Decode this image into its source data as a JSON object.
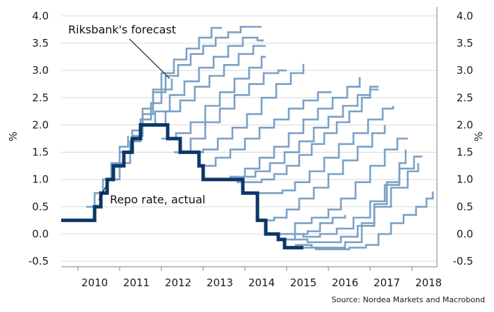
{
  "chart_data": {
    "type": "line",
    "title": "",
    "xlabel": "",
    "ylabel": "%",
    "y2label": "%",
    "xlim": [
      2009.6,
      2018.6
    ],
    "ylim": [
      -0.6,
      4.1
    ],
    "x_ticks": [
      "2010",
      "2011",
      "2012",
      "2013",
      "2014",
      "2015",
      "2016",
      "2017",
      "2018"
    ],
    "y_ticks": [
      "4.0",
      "3.5",
      "3.0",
      "2.5",
      "2.0",
      "1.5",
      "1.0",
      "0.5",
      "0.0",
      "-0.5"
    ],
    "grid": "horizontal",
    "annotations": [
      {
        "text": "Riksbank's forecast",
        "points_to": "forecast paths"
      },
      {
        "text": "Repo rate, actual",
        "points_to": "actual repo rate"
      }
    ],
    "source": "Source: Nordea Markets and Macrobond",
    "colors": {
      "actual": "#0b3768",
      "forecast": "#7ba0c6",
      "grid": "#d9d9d9",
      "axis": "#7f7f7f"
    },
    "series": [
      {
        "name": "Repo rate, actual",
        "role": "actual",
        "x": [
          2009.6,
          2010.1,
          2010.4,
          2010.55,
          2010.7,
          2010.85,
          2011.1,
          2011.3,
          2011.5,
          2011.95,
          2012.15,
          2012.45,
          2012.9,
          2013.0,
          2013.5,
          2013.95,
          2014.3,
          2014.5,
          2014.7,
          2014.8,
          2014.95,
          2015.15,
          2015.4
        ],
        "y": [
          0.25,
          0.25,
          0.5,
          0.75,
          1.0,
          1.25,
          1.5,
          1.75,
          2.0,
          2.0,
          1.75,
          1.5,
          1.25,
          1.0,
          1.0,
          0.75,
          0.25,
          0.0,
          0.0,
          -0.1,
          -0.25,
          -0.25,
          -0.25
        ]
      },
      {
        "role": "forecast",
        "x": [
          2010.2,
          2010.4,
          2010.6,
          2010.8,
          2011.0,
          2011.2
        ],
        "y": [
          0.5,
          0.75,
          1.0,
          1.3,
          1.6,
          1.8
        ]
      },
      {
        "role": "forecast",
        "x": [
          2010.7,
          2011.0,
          2011.25,
          2011.5,
          2011.75,
          2012.0,
          2012.25
        ],
        "y": [
          1.0,
          1.3,
          1.7,
          2.1,
          2.4,
          2.65,
          2.85
        ]
      },
      {
        "role": "forecast",
        "x": [
          2011.0,
          2011.3,
          2011.55,
          2011.8,
          2012.0,
          2012.3,
          2012.6,
          2012.9,
          2013.2,
          2013.45
        ],
        "y": [
          1.5,
          1.9,
          2.3,
          2.65,
          2.95,
          3.2,
          3.4,
          3.6,
          3.78,
          3.78
        ]
      },
      {
        "role": "forecast",
        "x": [
          2011.3,
          2011.55,
          2011.8,
          2012.1,
          2012.4,
          2012.7,
          2013.0,
          2013.3,
          2013.6,
          2013.9,
          2014.2,
          2014.4
        ],
        "y": [
          1.8,
          2.2,
          2.6,
          2.9,
          3.1,
          3.3,
          3.45,
          3.6,
          3.7,
          3.8,
          3.8,
          3.8
        ]
      },
      {
        "role": "forecast",
        "x": [
          2011.5,
          2011.85,
          2012.2,
          2012.55,
          2012.9,
          2013.25,
          2013.6,
          2013.95,
          2014.3,
          2014.45
        ],
        "y": [
          2.0,
          2.25,
          2.55,
          2.8,
          3.05,
          3.25,
          3.45,
          3.6,
          3.55,
          3.55
        ]
      },
      {
        "role": "forecast",
        "x": [
          2011.8,
          2012.1,
          2012.45,
          2012.8,
          2013.15,
          2013.5,
          2013.85,
          2014.2,
          2014.5
        ],
        "y": [
          2.0,
          2.25,
          2.45,
          2.7,
          2.9,
          3.1,
          3.3,
          3.45,
          3.45
        ]
      },
      {
        "role": "forecast",
        "x": [
          2012.0,
          2012.35,
          2012.7,
          2013.05,
          2013.4,
          2013.75,
          2014.1,
          2014.4,
          2014.5
        ],
        "y": [
          1.75,
          1.85,
          2.05,
          2.35,
          2.6,
          2.85,
          3.05,
          3.25,
          3.25
        ]
      },
      {
        "role": "forecast",
        "x": [
          2012.3,
          2012.7,
          2013.05,
          2013.4,
          2013.75,
          2014.1,
          2014.45,
          2014.8,
          2015.0
        ],
        "y": [
          1.5,
          1.75,
          2.05,
          2.3,
          2.55,
          2.75,
          2.95,
          3.0,
          3.0
        ]
      },
      {
        "role": "forecast",
        "x": [
          2012.6,
          2013.0,
          2013.35,
          2013.7,
          2014.05,
          2014.4,
          2014.75,
          2015.1,
          2015.4
        ],
        "y": [
          1.5,
          1.55,
          1.75,
          1.95,
          2.2,
          2.5,
          2.75,
          2.95,
          3.12
        ]
      },
      {
        "role": "forecast",
        "x": [
          2012.95,
          2013.3,
          2013.65,
          2014.0,
          2014.35,
          2014.7,
          2015.05,
          2015.4,
          2015.75,
          2016.05
        ],
        "y": [
          1.25,
          1.4,
          1.55,
          1.75,
          1.95,
          2.1,
          2.3,
          2.45,
          2.6,
          2.62
        ]
      },
      {
        "role": "forecast",
        "x": [
          2013.3,
          2013.65,
          2014.0,
          2014.35,
          2014.7,
          2015.05,
          2015.4,
          2015.75,
          2016.1,
          2016.45,
          2016.75
        ],
        "y": [
          1.0,
          1.05,
          1.2,
          1.4,
          1.6,
          1.85,
          2.1,
          2.3,
          2.5,
          2.7,
          2.88
        ]
      },
      {
        "role": "forecast",
        "x": [
          2013.55,
          2013.9,
          2014.25,
          2014.6,
          2014.95,
          2015.3,
          2015.65,
          2016.0,
          2016.35,
          2016.7,
          2017.0,
          2017.2
        ],
        "y": [
          1.0,
          1.05,
          1.15,
          1.3,
          1.5,
          1.7,
          1.95,
          2.15,
          2.35,
          2.55,
          2.7,
          2.7
        ]
      },
      {
        "role": "forecast",
        "x": [
          2013.8,
          2014.1,
          2014.4,
          2014.7,
          2015.0,
          2015.3,
          2015.6,
          2015.9,
          2016.2,
          2016.5,
          2016.8,
          2017.0,
          2017.2
        ],
        "y": [
          0.95,
          0.95,
          1.0,
          1.1,
          1.25,
          1.45,
          1.65,
          1.85,
          2.05,
          2.25,
          2.5,
          2.65,
          2.65
        ]
      },
      {
        "role": "forecast",
        "x": [
          2014.3,
          2014.6,
          2014.9,
          2015.2,
          2015.55,
          2015.9,
          2016.25,
          2016.6,
          2016.95,
          2017.3,
          2017.55
        ],
        "y": [
          0.75,
          0.75,
          0.8,
          0.95,
          1.15,
          1.4,
          1.65,
          1.85,
          2.1,
          2.3,
          2.35
        ]
      },
      {
        "role": "forecast",
        "x": [
          2014.4,
          2014.7,
          2015.0,
          2015.3,
          2015.65,
          2016.0,
          2016.35,
          2016.7,
          2017.05,
          2017.35
        ],
        "y": [
          0.25,
          0.3,
          0.45,
          0.65,
          0.85,
          1.1,
          1.35,
          1.6,
          1.85,
          2.0
        ]
      },
      {
        "role": "forecast",
        "x": [
          2014.8,
          2015.2,
          2015.6,
          2016.0,
          2016.3,
          2016.65,
          2017.0,
          2017.35,
          2017.65,
          2017.9
        ],
        "y": [
          0.0,
          0.2,
          0.3,
          0.45,
          0.65,
          0.95,
          1.25,
          1.55,
          1.75,
          1.75
        ]
      },
      {
        "role": "forecast",
        "x": [
          2014.95,
          2015.4,
          2015.8,
          2016.2,
          2016.6,
          2017.0,
          2017.35,
          2017.7,
          2018.05,
          2018.25
        ],
        "y": [
          0.0,
          -0.05,
          0.0,
          0.1,
          0.3,
          0.6,
          0.9,
          1.2,
          1.42,
          1.42
        ]
      },
      {
        "role": "forecast",
        "x": [
          2015.1,
          2015.5,
          2015.9,
          2016.3,
          2016.7,
          2017.1,
          2017.5,
          2017.9,
          2018.15
        ],
        "y": [
          -0.1,
          -0.15,
          -0.15,
          -0.05,
          0.15,
          0.5,
          0.85,
          1.15,
          1.3
        ]
      },
      {
        "role": "forecast",
        "x": [
          2015.2,
          2015.6,
          2016.0,
          2016.4,
          2016.8,
          2017.1,
          2017.4,
          2017.7,
          2017.85
        ],
        "y": [
          -0.2,
          -0.25,
          -0.25,
          -0.15,
          0.2,
          0.55,
          0.95,
          1.3,
          1.55
        ]
      },
      {
        "role": "forecast",
        "x": [
          2015.35,
          2015.7,
          2016.1,
          2016.5,
          2016.9,
          2017.2,
          2017.5,
          2017.8,
          2018.1,
          2018.35,
          2018.5
        ],
        "y": [
          -0.25,
          -0.28,
          -0.28,
          -0.25,
          -0.2,
          0.0,
          0.2,
          0.35,
          0.5,
          0.65,
          0.78
        ]
      },
      {
        "role": "forecast",
        "x": [
          2014.85,
          2015.2,
          2015.5,
          2015.8,
          2016.1,
          2016.4
        ],
        "y": [
          -0.1,
          0.0,
          0.05,
          0.2,
          0.3,
          0.35
        ]
      }
    ]
  }
}
